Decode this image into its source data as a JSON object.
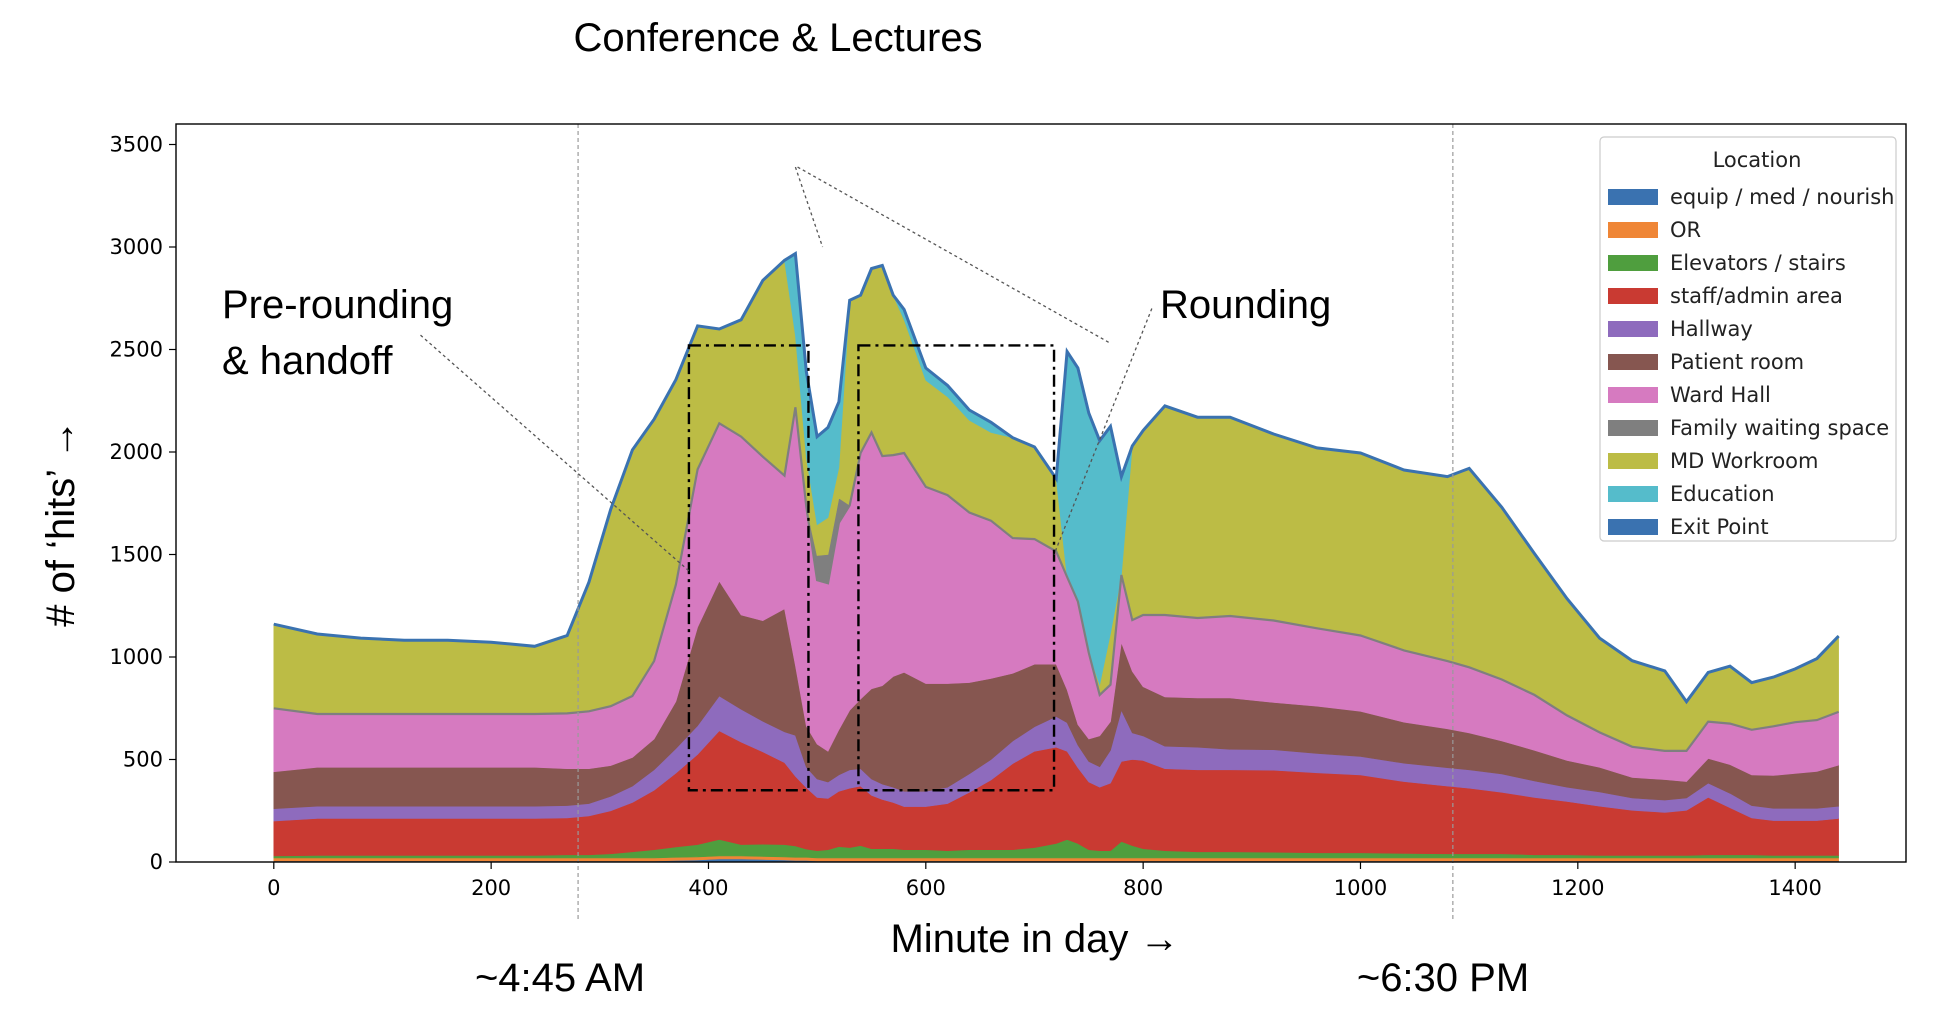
{
  "chart_data": {
    "type": "area",
    "stacked": true,
    "xlabel": "Minute in day →",
    "ylabel": "# of ‘hits’ →",
    "xlim": [
      -90,
      1502
    ],
    "ylim": [
      0,
      3600
    ],
    "xticks": [
      0,
      200,
      400,
      600,
      800,
      1000,
      1200,
      1400
    ],
    "yticks": [
      0,
      500,
      1000,
      1500,
      2000,
      2500,
      3000,
      3500
    ],
    "grid": false,
    "legend": {
      "title": "Location",
      "position": "top-right"
    },
    "x": [
      0,
      40,
      80,
      120,
      160,
      200,
      240,
      270,
      290,
      310,
      330,
      350,
      370,
      390,
      410,
      430,
      450,
      470,
      480,
      490,
      500,
      510,
      520,
      530,
      540,
      550,
      560,
      570,
      580,
      600,
      620,
      640,
      660,
      680,
      700,
      720,
      730,
      740,
      750,
      760,
      770,
      780,
      790,
      800,
      820,
      850,
      880,
      920,
      960,
      1000,
      1040,
      1080,
      1100,
      1130,
      1160,
      1190,
      1220,
      1250,
      1280,
      1300,
      1320,
      1340,
      1360,
      1380,
      1400,
      1420,
      1440
    ],
    "series": [
      {
        "name": "equip / med / nourish",
        "color": "#3a72b0",
        "values": [
          5,
          5,
          5,
          5,
          5,
          5,
          5,
          5,
          5,
          5,
          5,
          5,
          8,
          10,
          15,
          15,
          12,
          10,
          8,
          8,
          5,
          5,
          5,
          5,
          5,
          5,
          5,
          5,
          5,
          5,
          5,
          5,
          5,
          5,
          5,
          5,
          5,
          5,
          5,
          5,
          5,
          5,
          5,
          5,
          5,
          5,
          5,
          5,
          5,
          5,
          5,
          5,
          5,
          5,
          5,
          5,
          5,
          5,
          5,
          5,
          5,
          5,
          5,
          5,
          5,
          5,
          5
        ]
      },
      {
        "name": "OR",
        "color": "#ef8636",
        "values": [
          15,
          15,
          15,
          15,
          15,
          15,
          15,
          15,
          15,
          15,
          15,
          15,
          15,
          15,
          15,
          15,
          15,
          15,
          15,
          15,
          15,
          15,
          15,
          15,
          15,
          15,
          15,
          15,
          15,
          15,
          15,
          15,
          15,
          15,
          15,
          15,
          15,
          15,
          15,
          15,
          15,
          15,
          15,
          15,
          15,
          15,
          15,
          15,
          15,
          15,
          15,
          15,
          15,
          15,
          15,
          15,
          15,
          15,
          15,
          15,
          15,
          15,
          15,
          15,
          15,
          15,
          15
        ]
      },
      {
        "name": "Elevators / stairs",
        "color": "#4f9e3e",
        "values": [
          10,
          12,
          12,
          12,
          12,
          12,
          12,
          15,
          15,
          20,
          30,
          40,
          50,
          60,
          80,
          55,
          60,
          60,
          55,
          40,
          35,
          40,
          55,
          50,
          60,
          45,
          45,
          45,
          40,
          40,
          35,
          40,
          40,
          40,
          50,
          70,
          90,
          70,
          40,
          35,
          35,
          80,
          60,
          45,
          35,
          30,
          30,
          28,
          25,
          25,
          22,
          20,
          20,
          20,
          15,
          15,
          12,
          12,
          12,
          12,
          15,
          15,
          15,
          12,
          12,
          12,
          12
        ]
      },
      {
        "name": "staff/admin area",
        "color": "#c93a32",
        "values": [
          170,
          180,
          180,
          180,
          180,
          180,
          180,
          180,
          190,
          210,
          240,
          290,
          360,
          440,
          530,
          500,
          450,
          400,
          340,
          300,
          260,
          250,
          270,
          290,
          290,
          260,
          240,
          225,
          210,
          210,
          230,
          280,
          340,
          420,
          470,
          470,
          430,
          370,
          330,
          310,
          330,
          390,
          420,
          430,
          400,
          400,
          400,
          400,
          390,
          380,
          350,
          330,
          320,
          300,
          280,
          260,
          240,
          220,
          210,
          220,
          280,
          230,
          180,
          170,
          170,
          170,
          180
        ]
      },
      {
        "name": "Hallway",
        "color": "#8e6bbd",
        "values": [
          60,
          60,
          60,
          60,
          60,
          60,
          60,
          60,
          60,
          70,
          80,
          100,
          120,
          140,
          170,
          160,
          150,
          150,
          200,
          100,
          90,
          80,
          80,
          90,
          85,
          80,
          75,
          75,
          75,
          75,
          80,
          90,
          100,
          110,
          120,
          150,
          140,
          110,
          100,
          100,
          160,
          250,
          130,
          120,
          110,
          110,
          100,
          100,
          95,
          90,
          90,
          90,
          90,
          90,
          80,
          70,
          70,
          60,
          60,
          60,
          70,
          70,
          60,
          60,
          60,
          60,
          60
        ]
      },
      {
        "name": "Patient room",
        "color": "#865650",
        "values": [
          180,
          190,
          190,
          190,
          190,
          190,
          190,
          180,
          170,
          150,
          140,
          150,
          230,
          480,
          560,
          460,
          490,
          600,
          340,
          200,
          170,
          150,
          220,
          290,
          340,
          440,
          480,
          540,
          580,
          525,
          505,
          445,
          395,
          330,
          305,
          255,
          160,
          100,
          110,
          150,
          140,
          330,
          300,
          240,
          240,
          240,
          250,
          230,
          230,
          220,
          200,
          190,
          180,
          160,
          150,
          130,
          120,
          100,
          100,
          80,
          120,
          140,
          150,
          160,
          170,
          180,
          200
        ]
      },
      {
        "name": "Ward Hall",
        "color": "#d67ac0",
        "values": [
          310,
          260,
          260,
          260,
          260,
          260,
          260,
          270,
          280,
          290,
          300,
          380,
          570,
          770,
          770,
          870,
          800,
          650,
          1260,
          1070,
          800,
          820,
          1010,
          1000,
          1200,
          1250,
          1120,
          1080,
          1070,
          960,
          920,
          830,
          770,
          660,
          610,
          550,
          550,
          600,
          420,
          200,
          180,
          330,
          250,
          350,
          400,
          390,
          400,
          400,
          380,
          370,
          350,
          330,
          320,
          300,
          270,
          220,
          170,
          150,
          140,
          150,
          180,
          200,
          220,
          240,
          250,
          250,
          260
        ]
      },
      {
        "name": "Family waiting space",
        "color": "#7f7f7f",
        "values": [
          0,
          0,
          0,
          0,
          0,
          0,
          0,
          0,
          0,
          0,
          0,
          0,
          0,
          0,
          0,
          0,
          0,
          0,
          0,
          0,
          120,
          140,
          120,
          0,
          0,
          0,
          0,
          0,
          0,
          0,
          0,
          0,
          0,
          0,
          0,
          0,
          0,
          0,
          0,
          0,
          0,
          0,
          0,
          0,
          0,
          0,
          0,
          0,
          0,
          0,
          0,
          0,
          0,
          0,
          0,
          0,
          0,
          0,
          0,
          0,
          0,
          0,
          0,
          0,
          0,
          0,
          0
        ]
      },
      {
        "name": "MD Workroom",
        "color": "#bcbc45",
        "values": [
          410,
          390,
          370,
          360,
          360,
          350,
          330,
          380,
          630,
          960,
          1200,
          1180,
          1000,
          700,
          460,
          570,
          860,
          1050,
          350,
          240,
          150,
          180,
          150,
          1000,
          770,
          800,
          930,
          780,
          650,
          520,
          480,
          450,
          430,
          490,
          450,
          355,
          0,
          0,
          0,
          50,
          250,
          0,
          850,
          900,
          1020,
          980,
          970,
          910,
          880,
          890,
          880,
          900,
          970,
          840,
          690,
          570,
          460,
          420,
          390,
          240,
          240,
          280,
          230,
          240,
          260,
          300,
          370
        ]
      },
      {
        "name": "Education",
        "color": "#55bccb",
        "values": [
          0,
          0,
          0,
          0,
          0,
          0,
          0,
          0,
          0,
          0,
          0,
          0,
          0,
          0,
          0,
          0,
          0,
          0,
          400,
          420,
          430,
          440,
          320,
          0,
          0,
          0,
          0,
          0,
          50,
          60,
          55,
          50,
          50,
          0,
          0,
          0,
          1100,
          1140,
          1170,
          1190,
          1010,
          480,
          0,
          0,
          0,
          0,
          0,
          0,
          0,
          0,
          0,
          0,
          0,
          0,
          0,
          0,
          0,
          0,
          0,
          0,
          0,
          0,
          0,
          0,
          0,
          0,
          0
        ]
      },
      {
        "name": "Exit Point",
        "color": "#3a72b0",
        "values": [
          0,
          0,
          0,
          0,
          0,
          0,
          0,
          0,
          0,
          0,
          0,
          0,
          0,
          0,
          0,
          0,
          0,
          0,
          0,
          0,
          0,
          0,
          0,
          0,
          0,
          0,
          0,
          0,
          0,
          0,
          0,
          0,
          0,
          0,
          0,
          0,
          0,
          0,
          0,
          0,
          0,
          0,
          0,
          0,
          0,
          0,
          0,
          0,
          0,
          0,
          0,
          0,
          0,
          0,
          0,
          0,
          0,
          0,
          0,
          0,
          0,
          0,
          0,
          0,
          0,
          0,
          0
        ]
      }
    ],
    "vlines": [
      280,
      1085
    ],
    "annotations": [
      {
        "id": "conference",
        "text": "Conference & Lectures"
      },
      {
        "id": "prerounding_1",
        "text": "Pre-rounding"
      },
      {
        "id": "prerounding_2",
        "text": "& handoff"
      },
      {
        "id": "rounding",
        "text": "Rounding"
      },
      {
        "id": "time_morning",
        "text": "~4:45 AM"
      },
      {
        "id": "time_evening",
        "text": "~6:30 PM"
      }
    ],
    "boxes": [
      {
        "x0": 382,
        "x1": 492,
        "y0": 350,
        "y1": 2520
      },
      {
        "x0": 538,
        "x1": 718,
        "y0": 350,
        "y1": 2520
      }
    ]
  }
}
